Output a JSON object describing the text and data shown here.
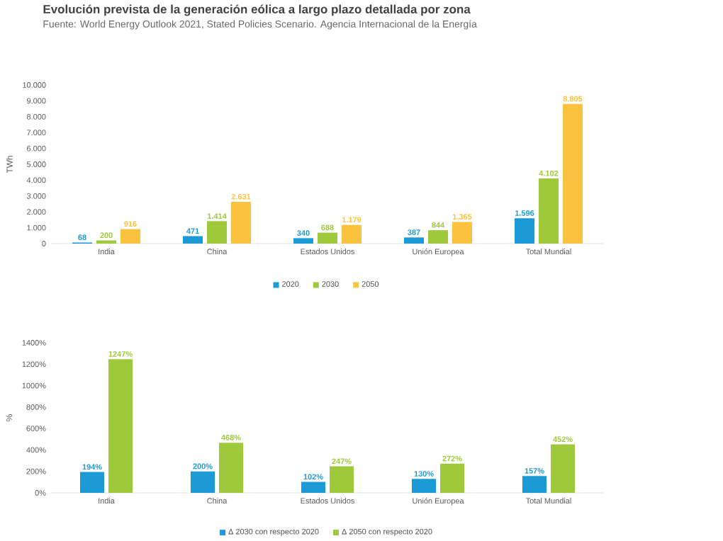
{
  "chart_data": [
    {
      "type": "bar",
      "title": "Evolución prevista de la generación eólica a largo plazo detallada por zona",
      "subtitle": "Fuente: World Energy Outlook 2021, Stated Policies Scenario. Agencia Internacional de la Energía",
      "ylabel": "TWh",
      "categories": [
        "India",
        "China",
        "Estados Unidos",
        "Unión Europea",
        "Total Mundial"
      ],
      "series": [
        {
          "name": "2020",
          "color": "#1b9ad6",
          "values": [
            68,
            471,
            340,
            387,
            1596
          ],
          "value_labels": [
            "68",
            "471",
            "340",
            "387",
            "1.596"
          ]
        },
        {
          "name": "2030",
          "color": "#9dc93b",
          "values": [
            200,
            1414,
            688,
            844,
            4102
          ],
          "value_labels": [
            "200",
            "1.414",
            "688",
            "844",
            "4.102"
          ]
        },
        {
          "name": "2050",
          "color": "#fbc23f",
          "values": [
            916,
            2631,
            1179,
            1365,
            8805
          ],
          "value_labels": [
            "916",
            "2.631",
            "1.179",
            "1.365",
            "8.805"
          ]
        }
      ],
      "ylim": [
        0,
        10000
      ],
      "yticks": [
        0,
        {
          "value": 1000,
          "label": "1.000"
        },
        {
          "value": 2000,
          "label": "2.000"
        },
        {
          "value": 3000,
          "label": "3.000"
        },
        {
          "value": 4000,
          "label": "4.000"
        },
        {
          "value": 5000,
          "label": "5.000"
        },
        {
          "value": 6000,
          "label": "6.000"
        },
        {
          "value": 7000,
          "label": "7.000"
        },
        {
          "value": 8000,
          "label": "8.000"
        },
        {
          "value": 9000,
          "label": "9.000"
        },
        {
          "value": 10000,
          "label": "10.000"
        }
      ],
      "grid": false,
      "legend": "bottom"
    },
    {
      "type": "bar",
      "ylabel": "%",
      "categories": [
        "India",
        "China",
        "Estados Unidos",
        "Unión Europea",
        "Total Mundial"
      ],
      "series": [
        {
          "name": "Δ 2030 con respecto 2020",
          "color": "#1b9ad6",
          "values": [
            194,
            200,
            102,
            130,
            157
          ],
          "value_labels": [
            "194%",
            "200%",
            "102%",
            "130%",
            "157%"
          ]
        },
        {
          "name": "Δ 2050 con respecto 2020",
          "color": "#9dc93b",
          "values": [
            1247,
            468,
            247,
            272,
            452
          ],
          "value_labels": [
            "1247%",
            "468%",
            "247%",
            "272%",
            "452%"
          ]
        }
      ],
      "ylim": [
        0,
        1400
      ],
      "yticks": [
        {
          "value": 0,
          "label": "0%"
        },
        {
          "value": 200,
          "label": "200%"
        },
        {
          "value": 400,
          "label": "400%"
        },
        {
          "value": 600,
          "label": "600%"
        },
        {
          "value": 800,
          "label": "800%"
        },
        {
          "value": 1000,
          "label": "1000%"
        },
        {
          "value": 1200,
          "label": "1200%"
        },
        {
          "value": 1400,
          "label": "1400%"
        }
      ],
      "grid": false,
      "legend": "bottom"
    }
  ]
}
